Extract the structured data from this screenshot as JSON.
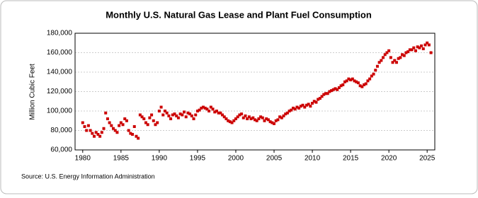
{
  "chart_data": {
    "type": "scatter",
    "title": "Monthly U.S. Natural Gas Lease and Plant Fuel Consumption",
    "y_label": "Million Cubic Feet",
    "source": "Source: U.S. Energy Information Administration",
    "xlim": [
      1979,
      2026
    ],
    "xticks": [
      1980,
      1985,
      1990,
      1995,
      2000,
      2005,
      2010,
      2015,
      2020,
      2025
    ],
    "ylim": [
      60000,
      180000
    ],
    "yticks": [
      {
        "value": 60000,
        "label": "60,000"
      },
      {
        "value": 80000,
        "label": "80,000"
      },
      {
        "value": 100000,
        "label": "100,000"
      },
      {
        "value": 120000,
        "label": "120,000"
      },
      {
        "value": 140000,
        "label": "140,000"
      },
      {
        "value": 160000,
        "label": "160,000"
      },
      {
        "value": 180000,
        "label": "180,000"
      }
    ],
    "grid": true,
    "series": [
      {
        "color": "#cc0000",
        "x": [
          1980,
          1980.25,
          1980.5,
          1980.75,
          1981,
          1981.25,
          1981.5,
          1981.75,
          1982,
          1982.25,
          1982.5,
          1982.75,
          1983,
          1983.25,
          1983.5,
          1983.75,
          1984,
          1984.25,
          1984.5,
          1984.75,
          1985,
          1985.25,
          1985.5,
          1985.75,
          1986,
          1986.25,
          1986.5,
          1986.75,
          1987,
          1987.25,
          1987.5,
          1987.75,
          1988,
          1988.25,
          1988.5,
          1988.75,
          1989,
          1989.25,
          1989.5,
          1989.75,
          1990,
          1990.25,
          1990.5,
          1990.75,
          1991,
          1991.25,
          1991.5,
          1991.75,
          1992,
          1992.25,
          1992.5,
          1992.75,
          1993,
          1993.25,
          1993.5,
          1993.75,
          1994,
          1994.25,
          1994.5,
          1994.75,
          1995,
          1995.25,
          1995.5,
          1995.75,
          1996,
          1996.25,
          1996.5,
          1996.75,
          1997,
          1997.25,
          1997.5,
          1997.75,
          1998,
          1998.25,
          1998.5,
          1998.75,
          1999,
          1999.25,
          1999.5,
          1999.75,
          2000,
          2000.25,
          2000.5,
          2000.75,
          2001,
          2001.25,
          2001.5,
          2001.75,
          2002,
          2002.25,
          2002.5,
          2002.75,
          2003,
          2003.25,
          2003.5,
          2003.75,
          2004,
          2004.25,
          2004.5,
          2004.75,
          2005,
          2005.25,
          2005.5,
          2005.75,
          2006,
          2006.25,
          2006.5,
          2006.75,
          2007,
          2007.25,
          2007.5,
          2007.75,
          2008,
          2008.25,
          2008.5,
          2008.75,
          2009,
          2009.25,
          2009.5,
          2009.75,
          2010,
          2010.25,
          2010.5,
          2010.75,
          2011,
          2011.25,
          2011.5,
          2011.75,
          2012,
          2012.25,
          2012.5,
          2012.75,
          2013,
          2013.25,
          2013.5,
          2013.75,
          2014,
          2014.25,
          2014.5,
          2014.75,
          2015,
          2015.25,
          2015.5,
          2015.75,
          2016,
          2016.25,
          2016.5,
          2016.75,
          2017,
          2017.25,
          2017.5,
          2017.75,
          2018,
          2018.25,
          2018.5,
          2018.75,
          2019,
          2019.25,
          2019.5,
          2019.75,
          2020,
          2020.25,
          2020.5,
          2020.75,
          2021,
          2021.25,
          2021.5,
          2021.75,
          2022,
          2022.25,
          2022.5,
          2022.75,
          2023,
          2023.25,
          2023.5,
          2023.75,
          2024,
          2024.25,
          2024.5,
          2024.75,
          2025,
          2025.25,
          2025.5
        ],
        "values": [
          88000,
          84000,
          80000,
          85000,
          80000,
          77000,
          74000,
          78000,
          76000,
          74000,
          78000,
          82000,
          98000,
          92000,
          88000,
          85000,
          82000,
          80000,
          78000,
          85000,
          88000,
          86000,
          92000,
          90000,
          80000,
          77000,
          76000,
          84000,
          74000,
          72000,
          96000,
          94000,
          92000,
          88000,
          86000,
          93000,
          96000,
          90000,
          86000,
          88000,
          100000,
          104000,
          96000,
          100000,
          98000,
          95000,
          92000,
          96000,
          97000,
          95000,
          93000,
          97000,
          96000,
          99000,
          94000,
          98000,
          97000,
          95000,
          92000,
          96000,
          100000,
          101000,
          103000,
          104000,
          103000,
          102000,
          100000,
          104000,
          102000,
          99000,
          100000,
          98000,
          98000,
          96000,
          94000,
          92000,
          90000,
          89000,
          88000,
          90000,
          92000,
          94000,
          96000,
          97000,
          93000,
          95000,
          92000,
          94000,
          92000,
          93000,
          91000,
          90000,
          92000,
          94000,
          93000,
          90000,
          92000,
          91000,
          89000,
          88000,
          87000,
          90000,
          91000,
          94000,
          93000,
          95000,
          97000,
          98000,
          100000,
          101000,
          103000,
          102000,
          104000,
          103000,
          105000,
          106000,
          104000,
          106000,
          107000,
          105000,
          108000,
          110000,
          109000,
          112000,
          113000,
          115000,
          117000,
          118000,
          118000,
          120000,
          121000,
          122000,
          123000,
          122000,
          124000,
          126000,
          127000,
          130000,
          131000,
          133000,
          132000,
          133000,
          131000,
          130000,
          129000,
          126000,
          125000,
          127000,
          128000,
          131000,
          133000,
          136000,
          138000,
          142000,
          146000,
          150000,
          152000,
          155000,
          158000,
          160000,
          162000,
          155000,
          150000,
          152000,
          150000,
          154000,
          155000,
          158000,
          157000,
          160000,
          161000,
          163000,
          163000,
          165000,
          162000,
          166000,
          165000,
          167000,
          164000,
          168000,
          170000,
          168000,
          160000
        ]
      }
    ]
  }
}
